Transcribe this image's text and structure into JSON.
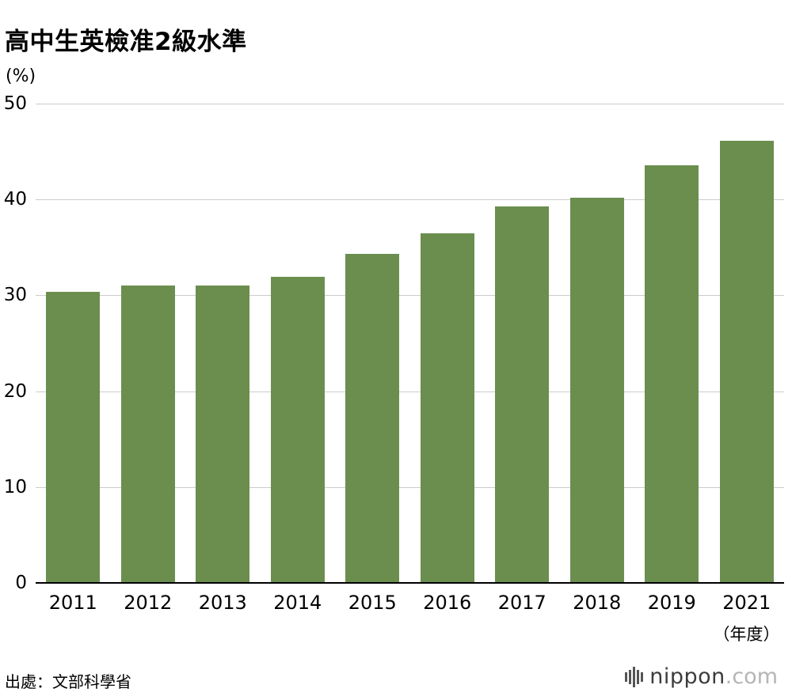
{
  "title": "高中生英檢准2級水準",
  "unit_label": "(%)",
  "x_axis_unit": "（年度）",
  "source": "出處：文部科學省",
  "logo": {
    "name": "nippon",
    "tld": ".com"
  },
  "chart_data": {
    "type": "bar",
    "title": "高中生英檢准2級水準",
    "categories": [
      "2011",
      "2012",
      "2013",
      "2014",
      "2015",
      "2016",
      "2017",
      "2018",
      "2019",
      "2021"
    ],
    "values": [
      30.4,
      31.0,
      31.0,
      31.9,
      34.3,
      36.5,
      39.3,
      40.2,
      43.6,
      46.1
    ],
    "xlabel": "（年度）",
    "ylabel": "(%)",
    "ylim": [
      0,
      50
    ],
    "yticks": [
      0,
      10,
      20,
      30,
      40,
      50
    ],
    "bar_color": "#6b8e4e",
    "grid": true,
    "gridline_color": "#cccccc",
    "legend": "none"
  }
}
